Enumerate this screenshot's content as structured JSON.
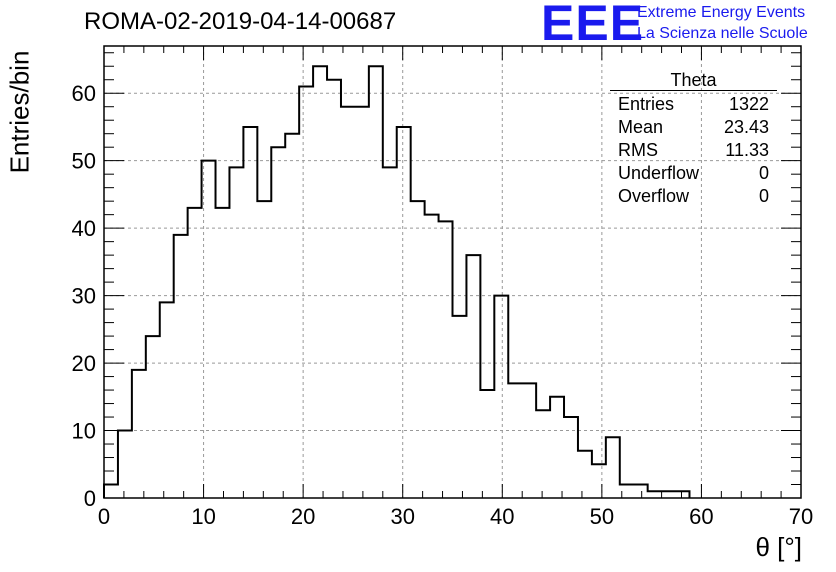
{
  "title": "ROMA-02-2019-04-14-00687",
  "logo": {
    "text": "EEE",
    "line1": "Extreme Energy Events",
    "line2": "La Scienza nelle Scuole",
    "color": "#1a1aee"
  },
  "stats": {
    "name": "Theta",
    "rows": [
      {
        "label": "Entries",
        "value": "1322"
      },
      {
        "label": "Mean",
        "value": "23.43"
      },
      {
        "label": "RMS",
        "value": "11.33"
      },
      {
        "label": "Underflow",
        "value": "0"
      },
      {
        "label": "Overflow",
        "value": "0"
      }
    ]
  },
  "chart_data": {
    "type": "bar",
    "style": "step-histogram",
    "title": "ROMA-02-2019-04-14-00687",
    "xlabel": "θ [°]",
    "ylabel": "Entries/bin",
    "xlim": [
      0,
      70
    ],
    "ylim": [
      0,
      67
    ],
    "xticks": [
      0,
      10,
      20,
      30,
      40,
      50,
      60,
      70
    ],
    "yticks": [
      0,
      10,
      20,
      30,
      40,
      50,
      60
    ],
    "grid": true,
    "bin_width": 1.4,
    "bins_start": 0,
    "values": [
      2,
      10,
      19,
      24,
      29,
      39,
      43,
      50,
      43,
      49,
      55,
      44,
      52,
      54,
      61,
      64,
      62,
      58,
      58,
      64,
      49,
      55,
      44,
      42,
      41,
      27,
      36,
      16,
      30,
      17,
      17,
      13,
      15,
      12,
      7,
      5,
      9,
      2,
      2,
      1,
      1,
      1
    ]
  }
}
